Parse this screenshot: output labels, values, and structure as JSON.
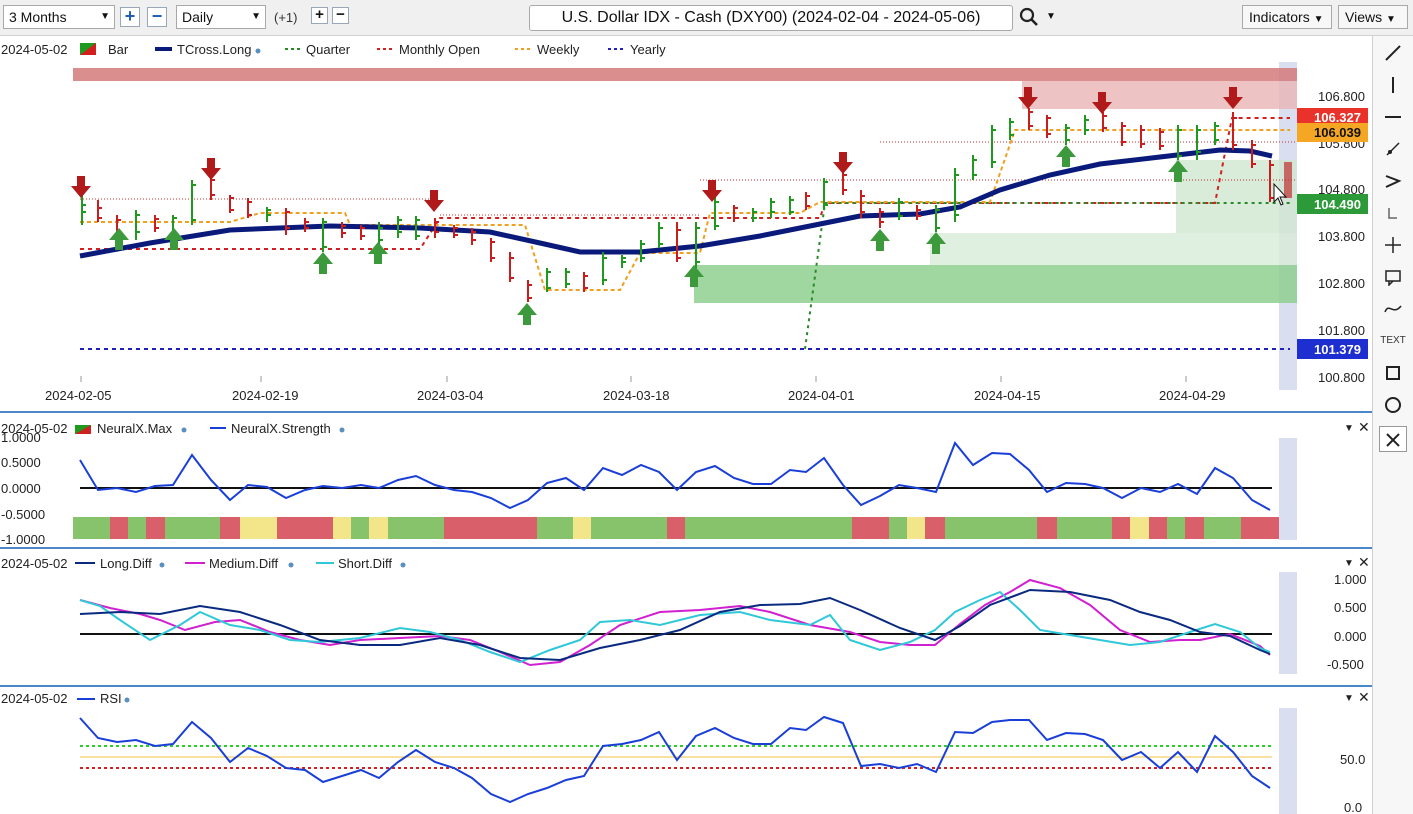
{
  "toolbar": {
    "period": "3 Months",
    "interval": "Daily",
    "offset": "(+1)",
    "title": "U.S. Dollar IDX - Cash (DXY00) (2024-02-04 - 2024-05-06)",
    "indicators_label": "Indicators",
    "views_label": "Views",
    "icons": [
      "plus-icon",
      "minus-icon",
      "search-icon",
      "chevron-down-icon"
    ]
  },
  "tools": [
    "line-tool-icon",
    "vertical-line-icon",
    "horizontal-line-icon",
    "ray-icon",
    "fib-icon",
    "pitchfork-icon",
    "crosshair-icon",
    "comment-icon",
    "curve-icon",
    "text-icon",
    "rectangle-icon",
    "circle-icon",
    "close-icon"
  ],
  "tools_text_label": "TEXT",
  "price_panel": {
    "date": "2024-05-02",
    "legend": [
      {
        "label": "Bar",
        "color": "#1f9a1f"
      },
      {
        "label": "TCross.Long",
        "color": "#0a1a7a"
      },
      {
        "label": "Quarter",
        "color": "#2a8a2a"
      },
      {
        "label": "Monthly Open",
        "color": "#d21f1f"
      },
      {
        "label": "Weekly",
        "color": "#f0a020"
      },
      {
        "label": "Yearly",
        "color": "#2020c0"
      }
    ],
    "price_ticks": [
      "106.800",
      "105.800",
      "104.800",
      "103.800",
      "102.800",
      "101.800",
      "100.800"
    ],
    "date_ticks": [
      "2024-02-05",
      "2024-02-19",
      "2024-03-04",
      "2024-03-18",
      "2024-04-01",
      "2024-04-15",
      "2024-04-29"
    ],
    "badges": [
      {
        "value": "106.327",
        "color": "#e8322a"
      },
      {
        "value": "106.039",
        "color": "#f5a623"
      },
      {
        "value": "104.490",
        "color": "#2d9a3a"
      },
      {
        "value": "101.379",
        "color": "#1d2fd1"
      }
    ]
  },
  "neural_panel": {
    "date": "2024-05-02",
    "legend": [
      {
        "label": "NeuralX.Max",
        "color": "#cc2222"
      },
      {
        "label": "NeuralX.Strength",
        "color": "#1a3fd8"
      }
    ],
    "ticks": [
      "1.0000",
      "0.5000",
      "0.0000",
      "-0.5000",
      "-1.0000"
    ]
  },
  "diff_panel": {
    "date": "2024-05-02",
    "legend": [
      {
        "label": "Long.Diff",
        "color": "#0a2a80"
      },
      {
        "label": "Medium.Diff",
        "color": "#d020d0"
      },
      {
        "label": "Short.Diff",
        "color": "#30c8d8"
      }
    ],
    "ticks": [
      "1.000",
      "0.500",
      "0.000",
      "-0.500"
    ]
  },
  "rsi_panel": {
    "date": "2024-05-02",
    "legend": [
      {
        "label": "RSI",
        "color": "#1a3fd8"
      }
    ],
    "ticks": [
      "50.0",
      "0.0"
    ]
  }
}
